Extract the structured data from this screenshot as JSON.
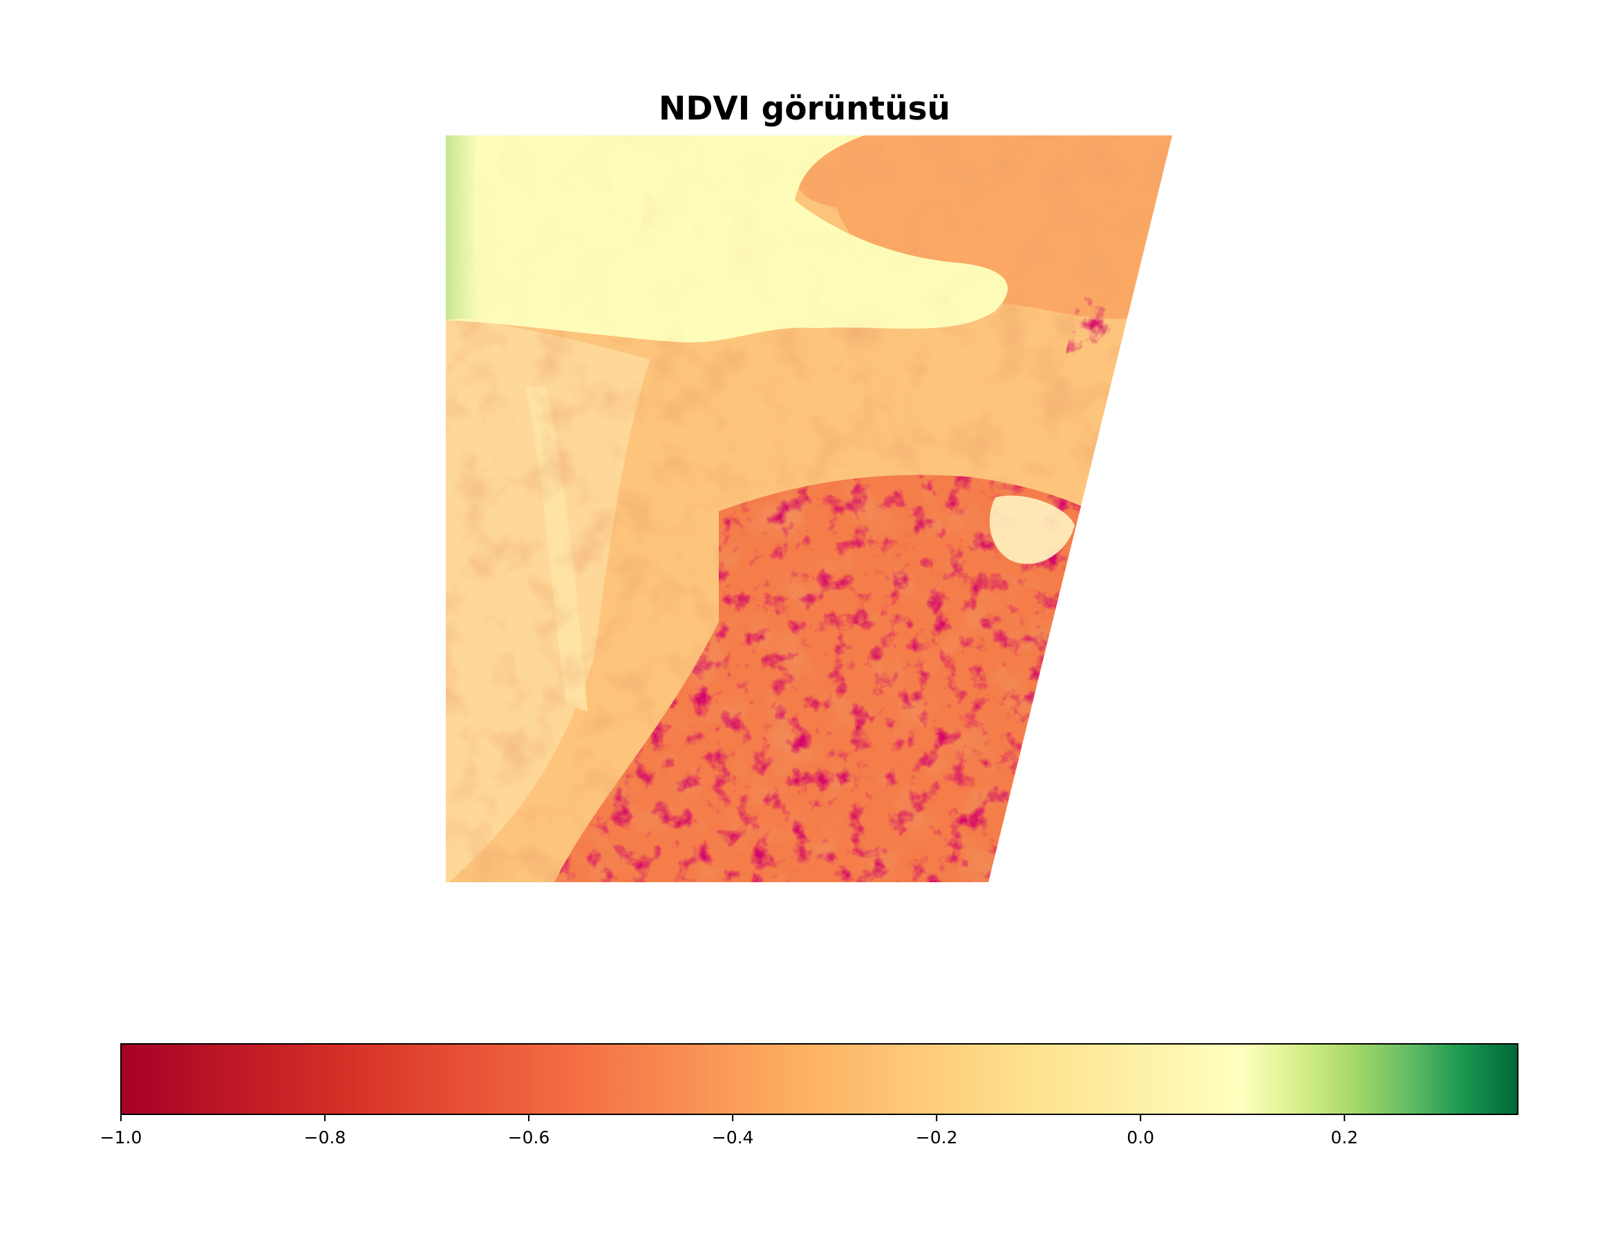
{
  "chart_data": {
    "type": "heatmap",
    "title": "NDVI görüntüsü",
    "colormap": "RdYlGn",
    "colorbar": {
      "orientation": "horizontal",
      "placement": "bottom",
      "range": [
        -1.0,
        0.37
      ],
      "ticks": [
        -1.0,
        -0.8,
        -0.6,
        -0.4,
        -0.2,
        0.0,
        0.2
      ],
      "tick_labels": [
        "−1.0",
        "−0.8",
        "−0.6",
        "−0.4",
        "−0.2",
        "0.0",
        "0.2"
      ]
    },
    "axes_visible": false,
    "colors": {
      "min": "#a50026",
      "mid": "#feffbe",
      "max": "#006837"
    }
  }
}
